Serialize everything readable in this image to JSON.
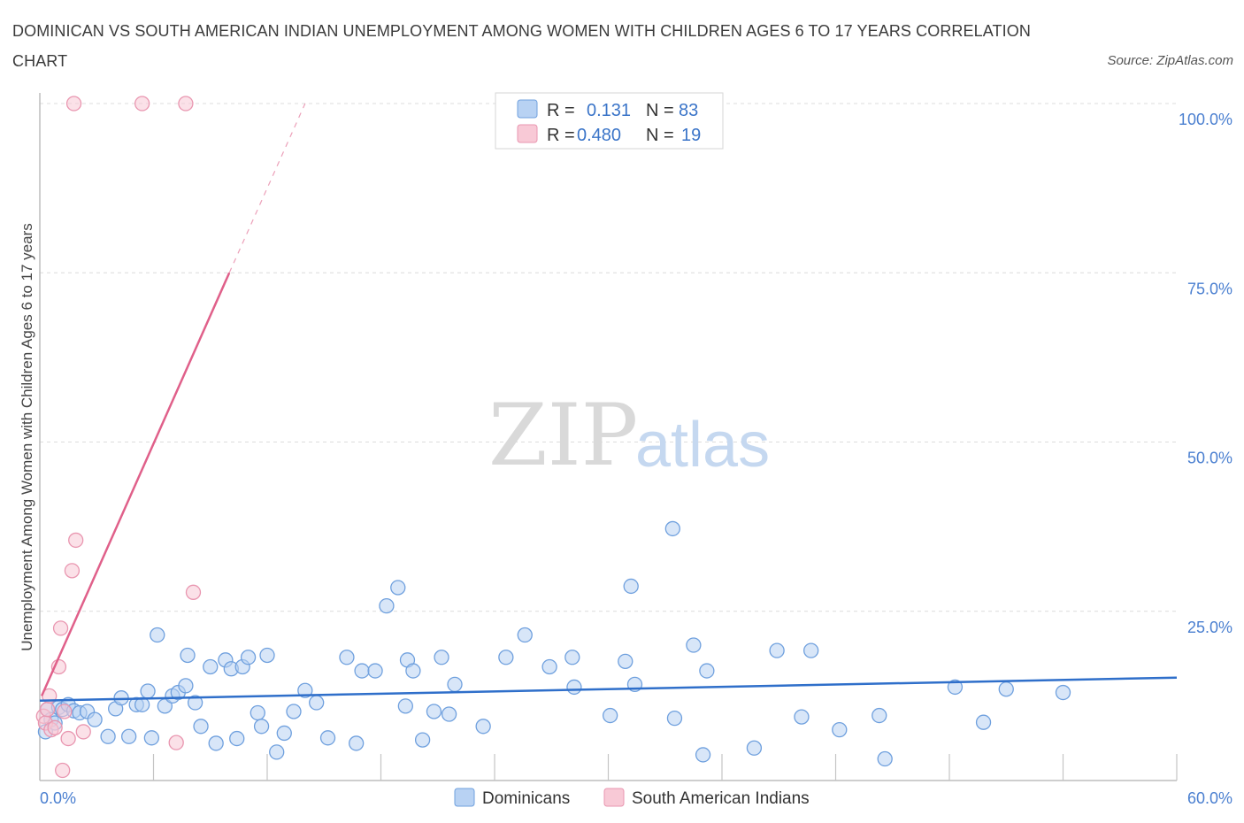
{
  "title": "DOMINICAN VS SOUTH AMERICAN INDIAN UNEMPLOYMENT AMONG WOMEN WITH CHILDREN AGES 6 TO 17 YEARS CORRELATION CHART",
  "source": "Source: ZipAtlas.com",
  "watermark": {
    "zip": "ZIP",
    "atlas": "atlas"
  },
  "colors": {
    "blue_fill": "#b8d2f3",
    "blue_stroke": "#6fa0de",
    "blue_line": "#2f6fca",
    "pink_fill": "#f8c9d6",
    "pink_stroke": "#e996b0",
    "pink_line": "#e0608a",
    "axis_label": "#4a7fd0"
  },
  "legend": {
    "rows": [
      {
        "r_label": "R =",
        "r_value": "0.131",
        "n_label": "N =",
        "n_value": "83",
        "color": "blue"
      },
      {
        "r_label": "R =",
        "r_value": "0.480",
        "n_label": "N =",
        "n_value": "19",
        "color": "pink"
      }
    ]
  },
  "chart_data": {
    "type": "scatter",
    "title": "DOMINICAN VS SOUTH AMERICAN INDIAN UNEMPLOYMENT AMONG WOMEN WITH CHILDREN AGES 6 TO 17 YEARS CORRELATION CHART",
    "xlabel": "",
    "ylabel": "Unemployment Among Women with Children Ages 6 to 17 years",
    "xlim": [
      0,
      60
    ],
    "ylim": [
      0,
      100
    ],
    "x_tick_labels": [
      "0.0%",
      "60.0%"
    ],
    "y_ticks": [
      25,
      50,
      75,
      100
    ],
    "y_tick_labels": [
      "25.0%",
      "50.0%",
      "75.0%",
      "100.0%"
    ],
    "grid": true,
    "legend_placement": "bottom-center",
    "series": [
      {
        "name": "Dominicans",
        "color": "blue",
        "trend": {
          "x": [
            0,
            60
          ],
          "y": [
            11.8,
            15.2
          ],
          "dashed_extension": false
        },
        "points": [
          [
            0.3,
            7.2
          ],
          [
            0.4,
            10.5
          ],
          [
            0.6,
            9.0
          ],
          [
            0.8,
            8.5
          ],
          [
            1.0,
            10.8
          ],
          [
            1.2,
            10.5
          ],
          [
            1.5,
            11.2
          ],
          [
            1.8,
            10.3
          ],
          [
            2.1,
            10.0
          ],
          [
            2.5,
            10.2
          ],
          [
            2.9,
            9.0
          ],
          [
            3.6,
            6.5
          ],
          [
            4.0,
            10.6
          ],
          [
            4.3,
            12.2
          ],
          [
            4.7,
            6.5
          ],
          [
            5.1,
            11.2
          ],
          [
            5.4,
            11.2
          ],
          [
            5.7,
            13.2
          ],
          [
            5.9,
            6.3
          ],
          [
            6.2,
            21.5
          ],
          [
            6.6,
            11.0
          ],
          [
            7.0,
            12.5
          ],
          [
            7.3,
            13.0
          ],
          [
            7.7,
            14.0
          ],
          [
            7.8,
            18.5
          ],
          [
            8.2,
            11.5
          ],
          [
            8.5,
            8.0
          ],
          [
            9.0,
            16.8
          ],
          [
            9.3,
            5.5
          ],
          [
            9.8,
            17.8
          ],
          [
            10.1,
            16.5
          ],
          [
            10.4,
            6.2
          ],
          [
            10.7,
            16.8
          ],
          [
            11.0,
            18.2
          ],
          [
            11.5,
            10.0
          ],
          [
            11.7,
            8.0
          ],
          [
            12.0,
            18.5
          ],
          [
            12.5,
            4.2
          ],
          [
            12.9,
            7.0
          ],
          [
            13.4,
            10.2
          ],
          [
            14.0,
            13.3
          ],
          [
            14.6,
            11.5
          ],
          [
            15.2,
            6.3
          ],
          [
            16.2,
            18.2
          ],
          [
            16.7,
            5.5
          ],
          [
            17.0,
            16.2
          ],
          [
            17.7,
            16.2
          ],
          [
            18.3,
            25.8
          ],
          [
            18.9,
            28.5
          ],
          [
            19.3,
            11.0
          ],
          [
            19.4,
            17.8
          ],
          [
            19.7,
            16.2
          ],
          [
            20.2,
            6.0
          ],
          [
            20.8,
            10.2
          ],
          [
            21.2,
            18.2
          ],
          [
            21.6,
            9.8
          ],
          [
            21.9,
            14.2
          ],
          [
            23.4,
            8.0
          ],
          [
            24.6,
            18.2
          ],
          [
            25.6,
            21.5
          ],
          [
            26.9,
            16.8
          ],
          [
            28.1,
            18.2
          ],
          [
            28.2,
            13.8
          ],
          [
            30.1,
            9.6
          ],
          [
            30.9,
            17.6
          ],
          [
            31.2,
            28.7
          ],
          [
            31.4,
            14.2
          ],
          [
            33.4,
            37.2
          ],
          [
            33.5,
            9.2
          ],
          [
            34.5,
            20.0
          ],
          [
            35.0,
            3.8
          ],
          [
            35.2,
            16.2
          ],
          [
            37.7,
            4.8
          ],
          [
            38.9,
            19.2
          ],
          [
            40.2,
            9.4
          ],
          [
            40.7,
            19.2
          ],
          [
            42.2,
            7.5
          ],
          [
            44.3,
            9.6
          ],
          [
            44.6,
            3.2
          ],
          [
            48.3,
            13.8
          ],
          [
            49.8,
            8.6
          ],
          [
            51.0,
            13.5
          ],
          [
            54.0,
            13.0
          ]
        ]
      },
      {
        "name": "South American Indians",
        "color": "pink",
        "trend": {
          "x": [
            0.1,
            10.0
          ],
          "y": [
            12.5,
            75.0
          ],
          "dashed_extension": {
            "x": [
              10.0,
              14.0
            ],
            "y": [
              75.0,
              100.0
            ]
          }
        },
        "points": [
          [
            0.2,
            9.5
          ],
          [
            0.3,
            8.5
          ],
          [
            0.4,
            10.5
          ],
          [
            0.5,
            12.5
          ],
          [
            0.6,
            7.5
          ],
          [
            0.8,
            7.8
          ],
          [
            1.0,
            16.8
          ],
          [
            1.1,
            22.5
          ],
          [
            1.2,
            1.5
          ],
          [
            1.3,
            10.2
          ],
          [
            1.5,
            6.2
          ],
          [
            1.7,
            31.0
          ],
          [
            1.8,
            100.0
          ],
          [
            1.9,
            35.5
          ],
          [
            2.3,
            7.2
          ],
          [
            5.4,
            100.0
          ],
          [
            7.2,
            5.6
          ],
          [
            7.7,
            100.0
          ],
          [
            8.1,
            27.8
          ]
        ]
      }
    ]
  }
}
